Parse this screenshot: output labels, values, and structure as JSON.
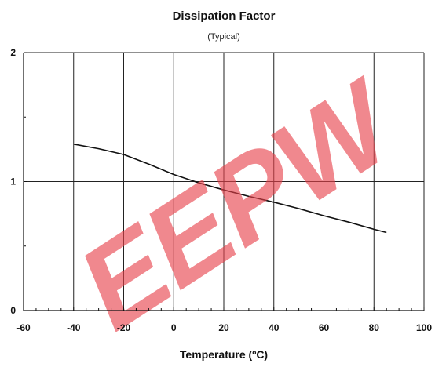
{
  "chart_data": {
    "type": "line",
    "title": "Dissipation Factor",
    "subtitle": "(Typical)",
    "xlabel": "Temperature (ºC)",
    "ylabel": "",
    "xlim": [
      -60,
      100
    ],
    "ylim": [
      0,
      2
    ],
    "x_ticks": [
      "-60",
      "-40",
      "-20",
      "0",
      "20",
      "40",
      "60",
      "80",
      "100"
    ],
    "x_tick_values": [
      -60,
      -40,
      -20,
      0,
      20,
      40,
      60,
      80,
      100
    ],
    "y_ticks": [
      "0",
      "1",
      "2"
    ],
    "y_tick_values": [
      0,
      1,
      2
    ],
    "x_minor_step": 5,
    "y_minor_step": 0.5,
    "grid": true,
    "grid_x_values": [
      -40,
      -20,
      0,
      20,
      40,
      60,
      80,
      100
    ],
    "grid_y_values": [
      1,
      2
    ],
    "series": [
      {
        "color": "#111111",
        "x": [
          -40,
          -30,
          -20,
          -10,
          0,
          10,
          20,
          30,
          40,
          50,
          60,
          70,
          80,
          85
        ],
        "y": [
          1.29,
          1.255,
          1.21,
          1.135,
          1.055,
          0.99,
          0.935,
          0.885,
          0.84,
          0.79,
          0.735,
          0.685,
          0.63,
          0.605
        ]
      }
    ]
  },
  "watermark": {
    "text": "EEPW",
    "color": "#e8414a"
  }
}
